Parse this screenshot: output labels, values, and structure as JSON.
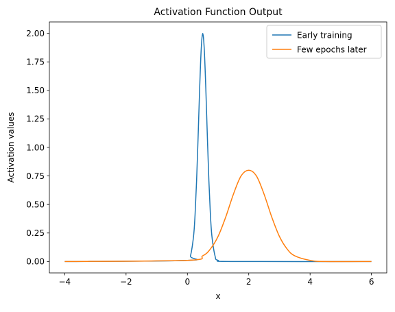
{
  "chart_data": {
    "type": "line",
    "title": "Activation Function Output",
    "xlabel": "x",
    "ylabel": "Activation values",
    "xlim": [
      -4.5,
      6.5
    ],
    "ylim": [
      -0.1,
      2.1
    ],
    "xticks": [
      -4,
      -2,
      0,
      2,
      4,
      6
    ],
    "xtick_labels": [
      "−4",
      "−2",
      "0",
      "2",
      "4",
      "6"
    ],
    "yticks": [
      0.0,
      0.25,
      0.5,
      0.75,
      1.0,
      1.25,
      1.5,
      1.75,
      2.0
    ],
    "ytick_labels": [
      "0.00",
      "0.25",
      "0.50",
      "0.75",
      "1.00",
      "1.25",
      "1.50",
      "1.75",
      "2.00"
    ],
    "grid": false,
    "legend_position": "top-right",
    "series": [
      {
        "name": "Early training",
        "color": "#1f77b4",
        "x": [
          -4.0,
          0.0,
          0.1,
          0.2,
          0.25,
          0.3,
          0.35,
          0.4,
          0.45,
          0.5,
          0.55,
          0.6,
          0.65,
          0.7,
          0.75,
          0.8,
          0.9,
          1.0,
          1.5,
          6.0
        ],
        "y": [
          0.0,
          0.01,
          0.05,
          0.22,
          0.41,
          0.71,
          1.1,
          1.52,
          1.86,
          2.0,
          1.86,
          1.52,
          1.1,
          0.71,
          0.41,
          0.22,
          0.05,
          0.01,
          0.0,
          0.0
        ]
      },
      {
        "name": "Few epochs later",
        "color": "#ff7f0e",
        "x": [
          -4.0,
          0.0,
          0.5,
          0.75,
          1.0,
          1.25,
          1.5,
          1.75,
          2.0,
          2.25,
          2.5,
          2.75,
          3.0,
          3.25,
          3.5,
          4.0,
          4.5,
          6.0
        ],
        "y": [
          0.0,
          0.01,
          0.05,
          0.11,
          0.22,
          0.39,
          0.59,
          0.75,
          0.8,
          0.75,
          0.59,
          0.39,
          0.22,
          0.11,
          0.05,
          0.01,
          0.0,
          0.0
        ]
      }
    ]
  }
}
